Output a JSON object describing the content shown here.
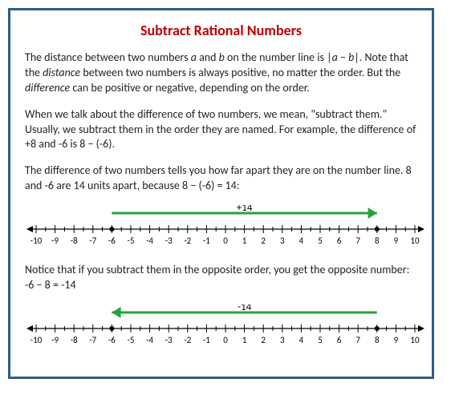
{
  "title": "Subtract Rational Numbers",
  "para1_html": "The distance between two numbers <i>a</i> and <i>b</i> on the number line is |<i>a</i> − <i>b</i>|. Note that the <i>distance</i> between two numbers is always positive, no matter the order. But the <i>difference</i> can be positive or negative, depending on the order.",
  "para2_html": "When we talk about the difference of two numbers, we mean, \"subtract them.\" Usually, we subtract them in the order they are named. For example, the difference of +8 and -6 is 8 − (-6).",
  "para3_html": "The difference of two numbers tells you how far apart they are on the number line. 8 and -6 are 14 units apart, because 8 − (-6) = 14:",
  "para4_html": "Notice that if you subtract them in the opposite order, you get the opposite number: -6 − 8 = -14",
  "numberlines": {
    "min": -10,
    "max": 10,
    "tick_labels": [
      "-10",
      "-9",
      "-8",
      "-7",
      "-6",
      "-5",
      "-4",
      "-3",
      "-2",
      "-1",
      "0",
      "1",
      "2",
      "3",
      "4",
      "5",
      "6",
      "7",
      "8",
      "9",
      "10"
    ],
    "axis_color": "#000000",
    "tick_color": "#000000",
    "label_fontsize": 11,
    "label_color": "#000000",
    "arrow_color": "#27a23a",
    "arrow_width": 3,
    "line1": {
      "from": -6,
      "to": 8,
      "label": "+14",
      "direction": "right",
      "dots": [
        -6,
        8
      ]
    },
    "line2": {
      "from": 8,
      "to": -6,
      "label": "-14",
      "direction": "left",
      "dots": [
        -6,
        8
      ]
    }
  },
  "colors": {
    "title": "#c00000",
    "border": "#2e5c8a",
    "text": "#222222",
    "background": "#ffffff"
  }
}
